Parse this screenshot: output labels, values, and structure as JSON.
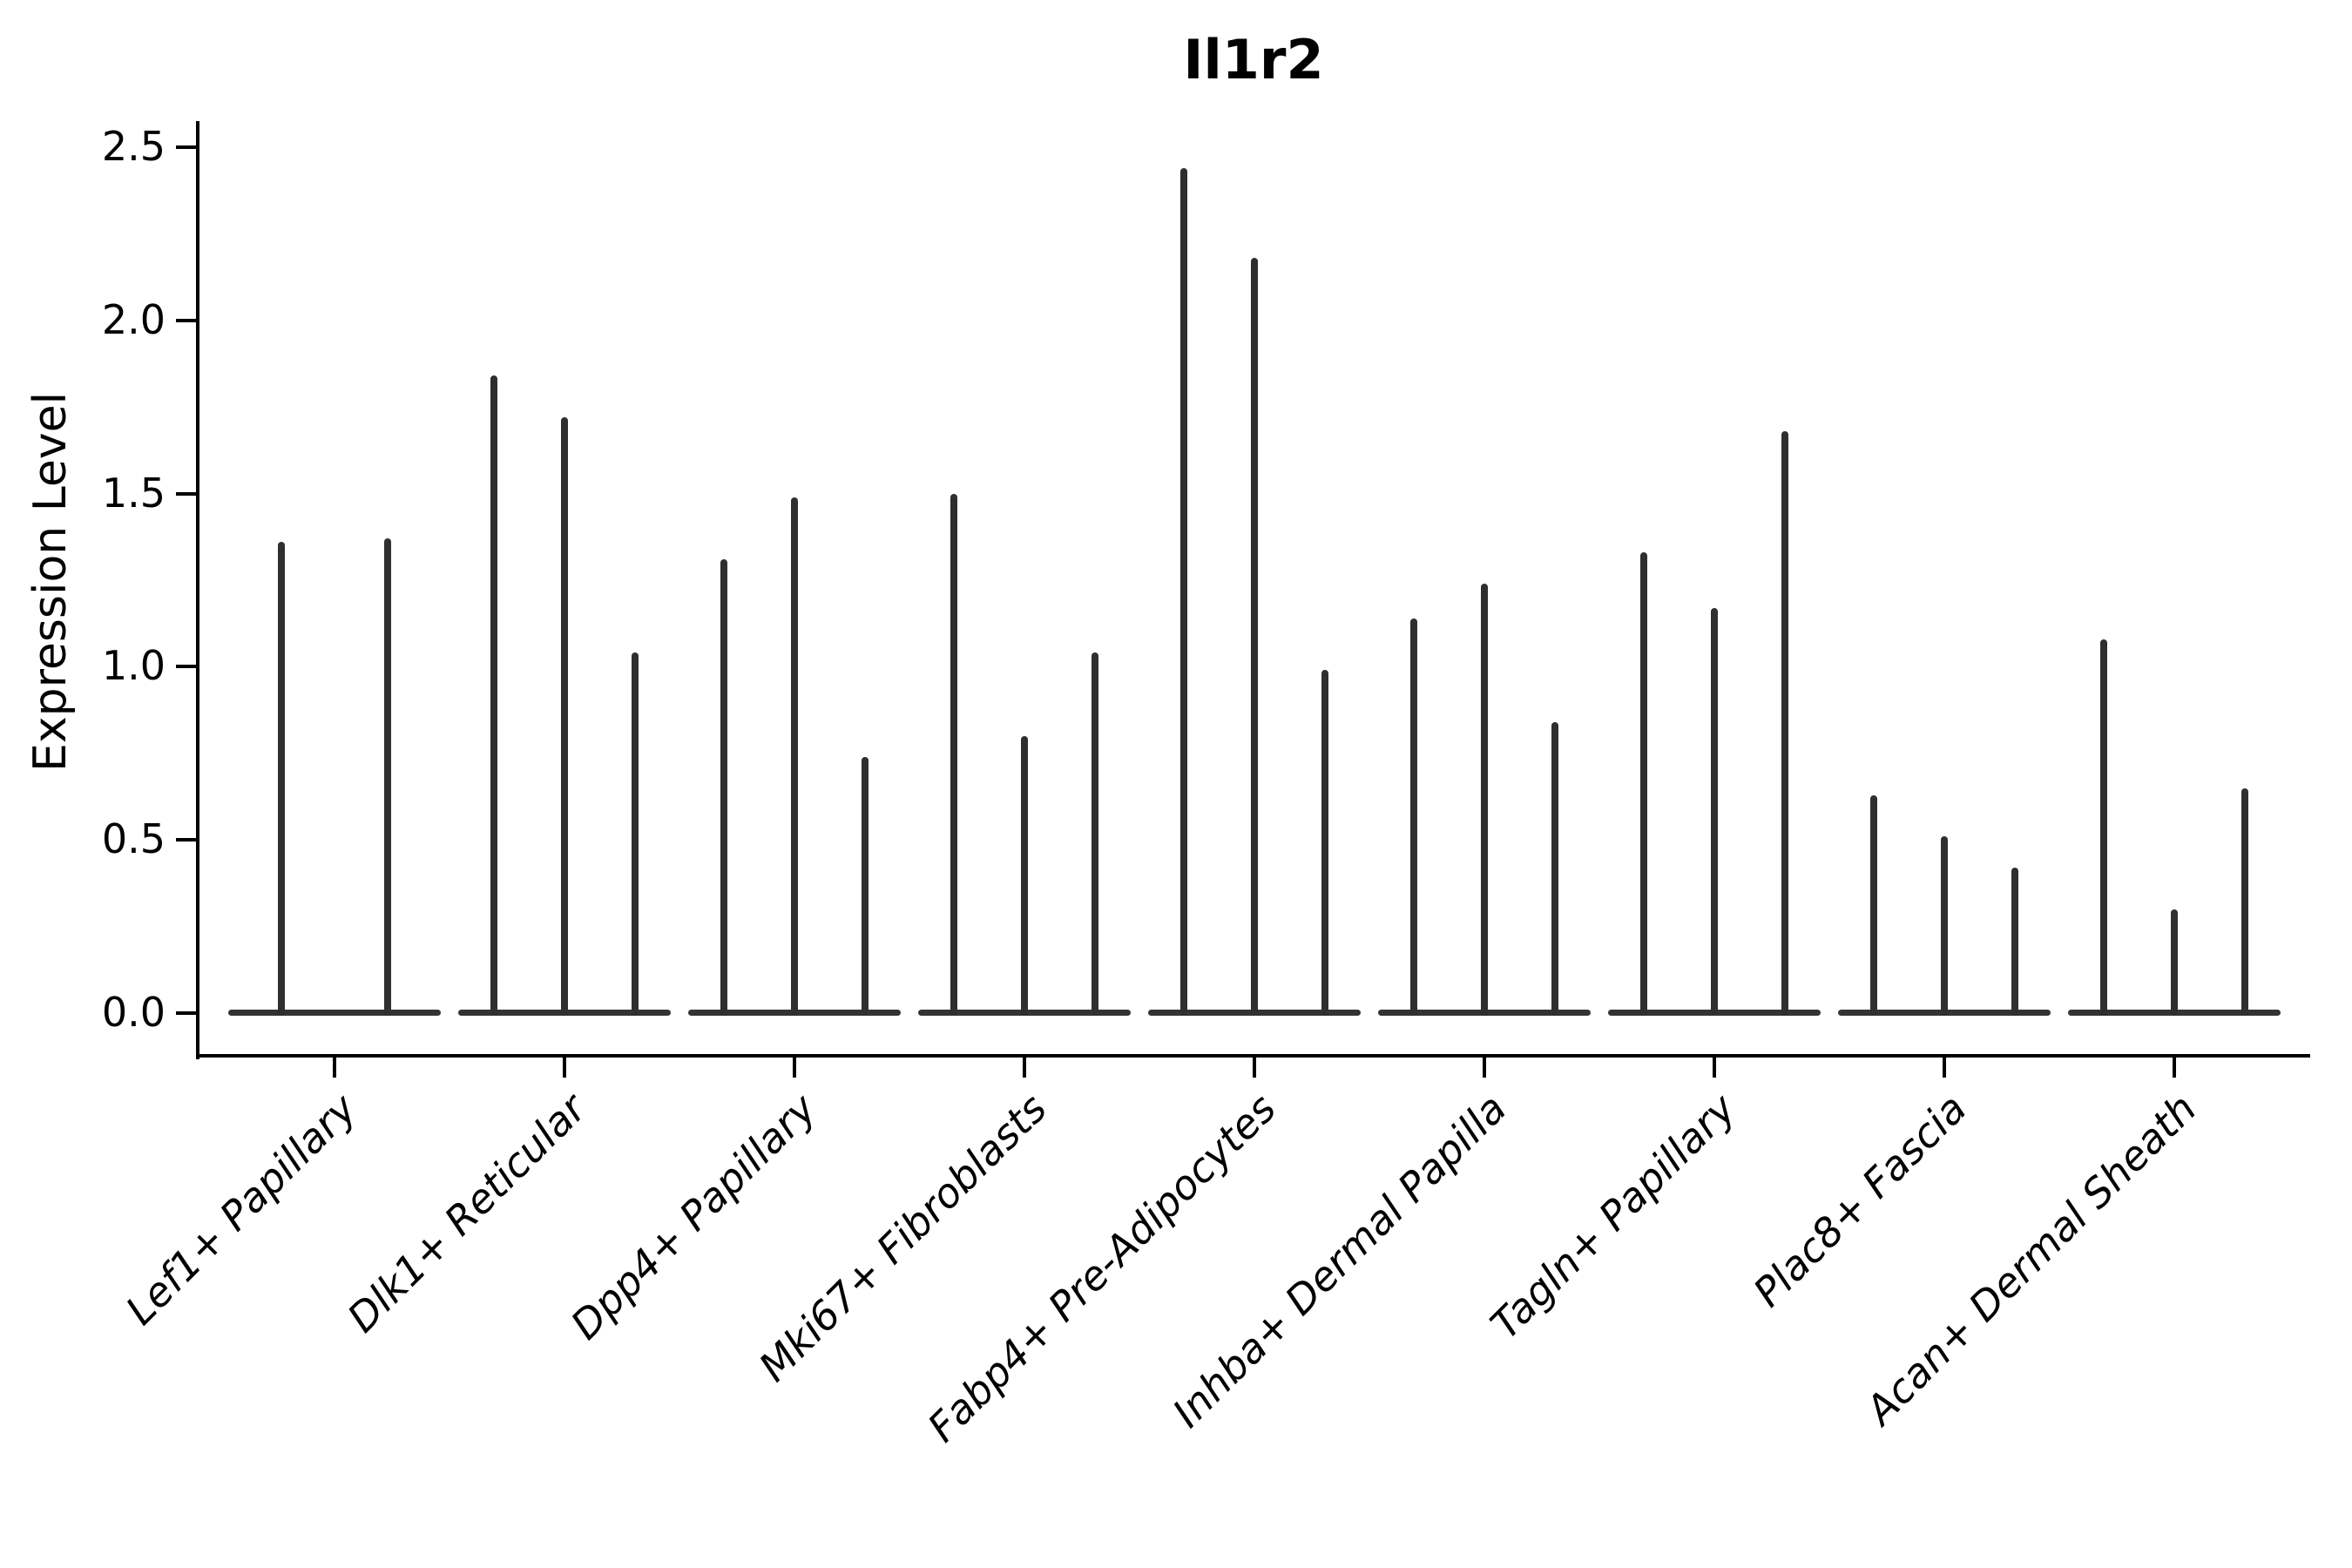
{
  "title": "Il1r2",
  "y_axis": {
    "label": "Expression Level",
    "tick_labels": [
      "0.0",
      "0.5",
      "1.0",
      "1.5",
      "2.0",
      "2.5"
    ]
  },
  "chart_data": {
    "type": "violin",
    "title": "Il1r2",
    "ylabel": "Expression Level",
    "ylim": [
      0,
      2.5
    ],
    "yticks": [
      0.0,
      0.5,
      1.0,
      1.5,
      2.0,
      2.5
    ],
    "grid": false,
    "legend_position": "none",
    "x_tick_rotation": 45,
    "note": "Each category shows very thin violins: a wide flat base at expression 0 and a narrow spike reaching the maximum expression value.",
    "categories": [
      "Lef1+ Papillary",
      "Dlk1+ Reticular",
      "Dpp4+ Papillary",
      "Mki67+ Fibroblasts",
      "Fabp4+ Pre-Adipocytes",
      "Inhba+ Dermal Papilla",
      "Tagln+ Papillary",
      "Plac8+ Fascia",
      "Acan+ Dermal Sheath"
    ],
    "groups": [
      {
        "category": "Lef1+ Papillary",
        "violin_count": 2,
        "spike_max_values": [
          1.36,
          1.37
        ]
      },
      {
        "category": "Dlk1+ Reticular",
        "violin_count": 3,
        "spike_max_values": [
          1.84,
          1.72,
          1.04
        ]
      },
      {
        "category": "Dpp4+ Papillary",
        "violin_count": 3,
        "spike_max_values": [
          1.31,
          1.49,
          0.74
        ]
      },
      {
        "category": "Mki67+ Fibroblasts",
        "violin_count": 3,
        "spike_max_values": [
          1.5,
          0.8,
          1.04
        ]
      },
      {
        "category": "Fabp4+ Pre-Adipocytes",
        "violin_count": 3,
        "spike_max_values": [
          2.44,
          2.18,
          0.99
        ]
      },
      {
        "category": "Inhba+ Dermal Papilla",
        "violin_count": 3,
        "spike_max_values": [
          1.14,
          1.24,
          0.84
        ]
      },
      {
        "category": "Tagln+ Papillary",
        "violin_count": 3,
        "spike_max_values": [
          1.33,
          1.17,
          1.68
        ]
      },
      {
        "category": "Plac8+ Fascia",
        "violin_count": 3,
        "spike_max_values": [
          0.63,
          0.51,
          0.42
        ]
      },
      {
        "category": "Acan+ Dermal Sheath",
        "violin_count": 3,
        "spike_max_values": [
          1.08,
          0.3,
          0.65
        ]
      }
    ]
  },
  "colors": {
    "violin": "#2f2f2f",
    "violin_base": "#333333",
    "axis": "#000000",
    "text": "#000000",
    "background": "#ffffff"
  }
}
